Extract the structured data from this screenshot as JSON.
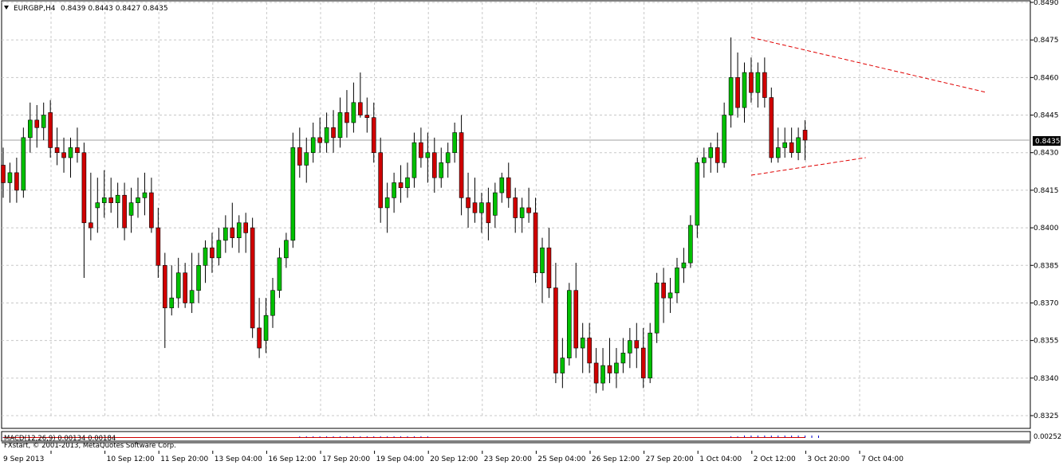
{
  "header": {
    "menu_icon": "triangle-down-icon",
    "symbol": "EURGBP,H4",
    "ohlc": "0.8439 0.8443 0.8427 0.8435"
  },
  "macd_panel": {
    "label": "MACD(12,26,9) 0.00134 0.00184",
    "scale_label": "0.00252"
  },
  "watermark": "FXstart, © 2001-2013, MetaQuotes Software Corp.",
  "colors": {
    "background": "#ffffff",
    "grid": "#c8c8c8",
    "bull": "#00c000",
    "bear": "#d00000",
    "wick": "#000000",
    "trendline": "#e00000",
    "macd_hist": "#0000cc",
    "macd_signal": "#d00000",
    "price_tag_bg": "#000000",
    "price_tag_text": "#ffffff"
  },
  "chart_data": {
    "type": "candlestick",
    "symbol": "EURGBP",
    "timeframe": "H4",
    "ylim": [
      0.8325,
      0.849
    ],
    "grid": true,
    "y_ticks": [
      "0.8490",
      "0.8475",
      "0.8460",
      "0.8445",
      "0.8430",
      "0.8415",
      "0.8400",
      "0.8385",
      "0.8370",
      "0.8355",
      "0.8340",
      "0.8325"
    ],
    "current_price": "0.8435",
    "x_tick_labels": [
      "9 Sep 2013",
      "10 Sep 12:00",
      "11 Sep 20:00",
      "13 Sep 04:00",
      "16 Sep 12:00",
      "17 Sep 20:00",
      "19 Sep 04:00",
      "20 Sep 12:00",
      "23 Sep 20:00",
      "25 Sep 04:00",
      "26 Sep 12:00",
      "27 Sep 20:00",
      "1 Oct 04:00",
      "2 Oct 12:00",
      "3 Oct 20:00",
      "7 Oct 04:00"
    ],
    "x_tick_bar_index": [
      0,
      8,
      16,
      24,
      32,
      40,
      48,
      56,
      64,
      72,
      80,
      88,
      96,
      104,
      112,
      120
    ],
    "candles": [
      [
        0.8425,
        0.8432,
        0.8412,
        0.8418
      ],
      [
        0.8418,
        0.8426,
        0.841,
        0.8422
      ],
      [
        0.8422,
        0.8428,
        0.841,
        0.8415
      ],
      [
        0.8415,
        0.844,
        0.8412,
        0.8436
      ],
      [
        0.8436,
        0.845,
        0.843,
        0.8443
      ],
      [
        0.8443,
        0.8449,
        0.8432,
        0.844
      ],
      [
        0.844,
        0.845,
        0.8435,
        0.8445
      ],
      [
        0.8446,
        0.8451,
        0.8428,
        0.8432
      ],
      [
        0.8432,
        0.844,
        0.8425,
        0.843
      ],
      [
        0.843,
        0.8436,
        0.8422,
        0.8428
      ],
      [
        0.8428,
        0.8436,
        0.842,
        0.8432
      ],
      [
        0.8432,
        0.844,
        0.8426,
        0.843
      ],
      [
        0.843,
        0.8434,
        0.838,
        0.8402
      ],
      [
        0.8402,
        0.8422,
        0.8395,
        0.84
      ],
      [
        0.8408,
        0.842,
        0.8398,
        0.841
      ],
      [
        0.841,
        0.8423,
        0.8404,
        0.8412
      ],
      [
        0.8412,
        0.842,
        0.8406,
        0.841
      ],
      [
        0.841,
        0.8418,
        0.84,
        0.8413
      ],
      [
        0.8413,
        0.8418,
        0.8395,
        0.84
      ],
      [
        0.8405,
        0.8416,
        0.8398,
        0.841
      ],
      [
        0.841,
        0.842,
        0.8404,
        0.8412
      ],
      [
        0.8412,
        0.8422,
        0.8405,
        0.8414
      ],
      [
        0.8414,
        0.842,
        0.8398,
        0.84
      ],
      [
        0.84,
        0.8408,
        0.838,
        0.8385
      ],
      [
        0.8385,
        0.839,
        0.8352,
        0.8368
      ],
      [
        0.8368,
        0.8385,
        0.8365,
        0.8372
      ],
      [
        0.8372,
        0.8388,
        0.8368,
        0.8382
      ],
      [
        0.8382,
        0.8386,
        0.8368,
        0.837
      ],
      [
        0.837,
        0.839,
        0.8366,
        0.8375
      ],
      [
        0.8375,
        0.839,
        0.837,
        0.8385
      ],
      [
        0.8385,
        0.8395,
        0.8378,
        0.8392
      ],
      [
        0.8392,
        0.8398,
        0.8382,
        0.8388
      ],
      [
        0.8388,
        0.84,
        0.8385,
        0.8395
      ],
      [
        0.8395,
        0.8405,
        0.839,
        0.84
      ],
      [
        0.84,
        0.841,
        0.8392,
        0.8396
      ],
      [
        0.8396,
        0.8405,
        0.839,
        0.8402
      ],
      [
        0.8402,
        0.8406,
        0.839,
        0.8398
      ],
      [
        0.84,
        0.8404,
        0.8356,
        0.836
      ],
      [
        0.836,
        0.8372,
        0.8348,
        0.8352
      ],
      [
        0.8355,
        0.8372,
        0.835,
        0.8365
      ],
      [
        0.8365,
        0.838,
        0.836,
        0.8375
      ],
      [
        0.8375,
        0.8392,
        0.8372,
        0.8388
      ],
      [
        0.8388,
        0.8398,
        0.8384,
        0.8395
      ],
      [
        0.8395,
        0.8438,
        0.8392,
        0.8432
      ],
      [
        0.8432,
        0.844,
        0.842,
        0.8425
      ],
      [
        0.8425,
        0.8436,
        0.8418,
        0.843
      ],
      [
        0.843,
        0.8442,
        0.8426,
        0.8436
      ],
      [
        0.8436,
        0.8444,
        0.843,
        0.8434
      ],
      [
        0.8434,
        0.8446,
        0.843,
        0.844
      ],
      [
        0.844,
        0.8447,
        0.843,
        0.8436
      ],
      [
        0.8436,
        0.8452,
        0.8432,
        0.8446
      ],
      [
        0.8446,
        0.8455,
        0.8436,
        0.8442
      ],
      [
        0.8442,
        0.8458,
        0.8438,
        0.845
      ],
      [
        0.845,
        0.8462,
        0.8444,
        0.8445
      ],
      [
        0.8445,
        0.8452,
        0.8438,
        0.8444
      ],
      [
        0.8444,
        0.845,
        0.8426,
        0.843
      ],
      [
        0.843,
        0.8436,
        0.8402,
        0.8408
      ],
      [
        0.8408,
        0.8418,
        0.8398,
        0.8412
      ],
      [
        0.8412,
        0.8422,
        0.8406,
        0.8418
      ],
      [
        0.8418,
        0.8425,
        0.841,
        0.8416
      ],
      [
        0.8416,
        0.8426,
        0.8412,
        0.842
      ],
      [
        0.842,
        0.8438,
        0.8416,
        0.8434
      ],
      [
        0.8434,
        0.844,
        0.8424,
        0.8428
      ],
      [
        0.8428,
        0.8438,
        0.8418,
        0.843
      ],
      [
        0.843,
        0.8436,
        0.8414,
        0.842
      ],
      [
        0.842,
        0.8432,
        0.8416,
        0.8426
      ],
      [
        0.8426,
        0.8434,
        0.842,
        0.843
      ],
      [
        0.843,
        0.8442,
        0.8426,
        0.8438
      ],
      [
        0.8438,
        0.8445,
        0.8405,
        0.8412
      ],
      [
        0.8412,
        0.8422,
        0.84,
        0.8408
      ],
      [
        0.841,
        0.842,
        0.8402,
        0.8406
      ],
      [
        0.8406,
        0.8414,
        0.8398,
        0.841
      ],
      [
        0.841,
        0.8416,
        0.8395,
        0.8402
      ],
      [
        0.8405,
        0.8418,
        0.84,
        0.8414
      ],
      [
        0.8414,
        0.8422,
        0.841,
        0.842
      ],
      [
        0.842,
        0.8426,
        0.8408,
        0.8412
      ],
      [
        0.8412,
        0.8416,
        0.8398,
        0.8404
      ],
      [
        0.8404,
        0.8412,
        0.8398,
        0.8408
      ],
      [
        0.8408,
        0.8416,
        0.8402,
        0.8406
      ],
      [
        0.8406,
        0.8412,
        0.8378,
        0.8382
      ],
      [
        0.8382,
        0.8396,
        0.837,
        0.8392
      ],
      [
        0.8392,
        0.84,
        0.8372,
        0.8376
      ],
      [
        0.8376,
        0.8386,
        0.8338,
        0.8342
      ],
      [
        0.8342,
        0.8356,
        0.8336,
        0.8348
      ],
      [
        0.8348,
        0.8378,
        0.8345,
        0.8375
      ],
      [
        0.8375,
        0.8386,
        0.8348,
        0.8352
      ],
      [
        0.8352,
        0.8362,
        0.8342,
        0.8356
      ],
      [
        0.8356,
        0.8362,
        0.8342,
        0.8346
      ],
      [
        0.8346,
        0.8352,
        0.8334,
        0.8338
      ],
      [
        0.8338,
        0.8352,
        0.8335,
        0.8345
      ],
      [
        0.8345,
        0.8356,
        0.8338,
        0.8342
      ],
      [
        0.8342,
        0.8352,
        0.8336,
        0.8346
      ],
      [
        0.8346,
        0.8356,
        0.8342,
        0.835
      ],
      [
        0.835,
        0.836,
        0.8344,
        0.8355
      ],
      [
        0.8355,
        0.8362,
        0.8344,
        0.8352
      ],
      [
        0.8352,
        0.836,
        0.8336,
        0.834
      ],
      [
        0.834,
        0.8362,
        0.8338,
        0.8358
      ],
      [
        0.8358,
        0.8382,
        0.8354,
        0.8378
      ],
      [
        0.8378,
        0.8384,
        0.8362,
        0.8372
      ],
      [
        0.8372,
        0.838,
        0.8366,
        0.8374
      ],
      [
        0.8374,
        0.8388,
        0.837,
        0.8384
      ],
      [
        0.8384,
        0.8392,
        0.8378,
        0.8386
      ],
      [
        0.8386,
        0.8405,
        0.8384,
        0.8401
      ],
      [
        0.8401,
        0.8428,
        0.8396,
        0.8426
      ],
      [
        0.8426,
        0.8432,
        0.842,
        0.8428
      ],
      [
        0.8428,
        0.8434,
        0.8422,
        0.8432
      ],
      [
        0.8432,
        0.8438,
        0.8422,
        0.8426
      ],
      [
        0.8426,
        0.845,
        0.8424,
        0.8445
      ],
      [
        0.8445,
        0.8476,
        0.844,
        0.846
      ],
      [
        0.846,
        0.847,
        0.8444,
        0.8448
      ],
      [
        0.8448,
        0.8466,
        0.8442,
        0.8462
      ],
      [
        0.8462,
        0.8468,
        0.845,
        0.8454
      ],
      [
        0.8454,
        0.8466,
        0.8448,
        0.8462
      ],
      [
        0.8462,
        0.8468,
        0.8448,
        0.8452
      ],
      [
        0.8452,
        0.8456,
        0.8426,
        0.8428
      ],
      [
        0.8428,
        0.844,
        0.8426,
        0.8432
      ],
      [
        0.8432,
        0.844,
        0.8428,
        0.8434
      ],
      [
        0.8434,
        0.844,
        0.8428,
        0.843
      ],
      [
        0.843,
        0.844,
        0.8427,
        0.8436
      ],
      [
        0.8439,
        0.8443,
        0.8427,
        0.8435
      ]
    ],
    "trendlines": [
      {
        "from": {
          "bar": 111,
          "price": 0.8476
        },
        "to": {
          "bar": 146,
          "price": 0.8454
        }
      },
      {
        "from": {
          "bar": 111,
          "price": 0.8421
        },
        "to": {
          "bar": 128,
          "price": 0.8428
        }
      }
    ],
    "macd": {
      "histogram_heights": [
        1,
        1,
        1,
        1,
        1,
        1,
        1,
        1,
        1,
        1,
        1,
        1,
        1,
        1,
        1,
        1,
        1,
        1,
        1,
        1,
        1,
        1,
        1,
        1,
        1,
        1,
        1,
        1,
        1,
        1,
        1,
        1,
        1,
        1,
        1,
        1,
        1,
        1,
        1,
        1,
        1,
        1,
        1,
        1,
        2,
        2,
        2,
        2,
        2,
        2,
        2,
        2,
        2,
        2,
        2,
        2,
        2,
        2,
        2,
        2,
        2,
        2,
        2,
        2,
        1,
        1,
        1,
        1,
        1,
        1,
        1,
        1,
        1,
        1,
        1,
        1,
        1,
        1,
        1,
        1,
        1,
        1,
        1,
        1,
        1,
        1,
        1,
        1,
        1,
        1,
        1,
        1,
        1,
        1,
        1,
        1,
        1,
        1,
        1,
        1,
        1,
        1,
        1,
        1,
        1,
        1,
        1,
        1,
        2,
        2,
        3,
        3,
        3,
        3,
        3,
        3,
        3,
        3,
        3,
        3,
        3,
        3
      ],
      "signal_level": 0.3
    }
  }
}
